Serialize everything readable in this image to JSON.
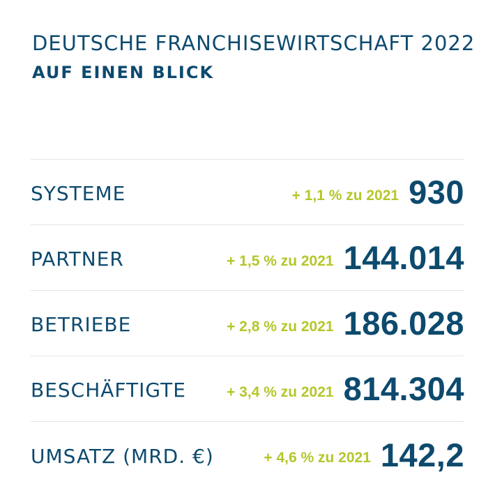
{
  "header": {
    "title": "DEUTSCHE FRANCHISEWIRTSCHAFT 2022",
    "subtitle": "AUF EINEN BLICK"
  },
  "colors": {
    "primary": "#0d4a6e",
    "accent": "#b5c62a",
    "divider": "#e4e4e4"
  },
  "stats": [
    {
      "label": "SYSTEME",
      "change": "+ 1,1 % zu 2021",
      "value": "930"
    },
    {
      "label": "PARTNER",
      "change": "+ 1,5 % zu 2021",
      "value": "144.014"
    },
    {
      "label": "BETRIEBE",
      "change": "+ 2,8 % zu 2021",
      "value": "186.028"
    },
    {
      "label": "BESCHÄFTIGTE",
      "change": "+ 3,4 % zu 2021",
      "value": "814.304"
    },
    {
      "label": "UMSATZ (MRD. €)",
      "change": "+ 4,6 % zu 2021",
      "value": "142,2"
    }
  ]
}
